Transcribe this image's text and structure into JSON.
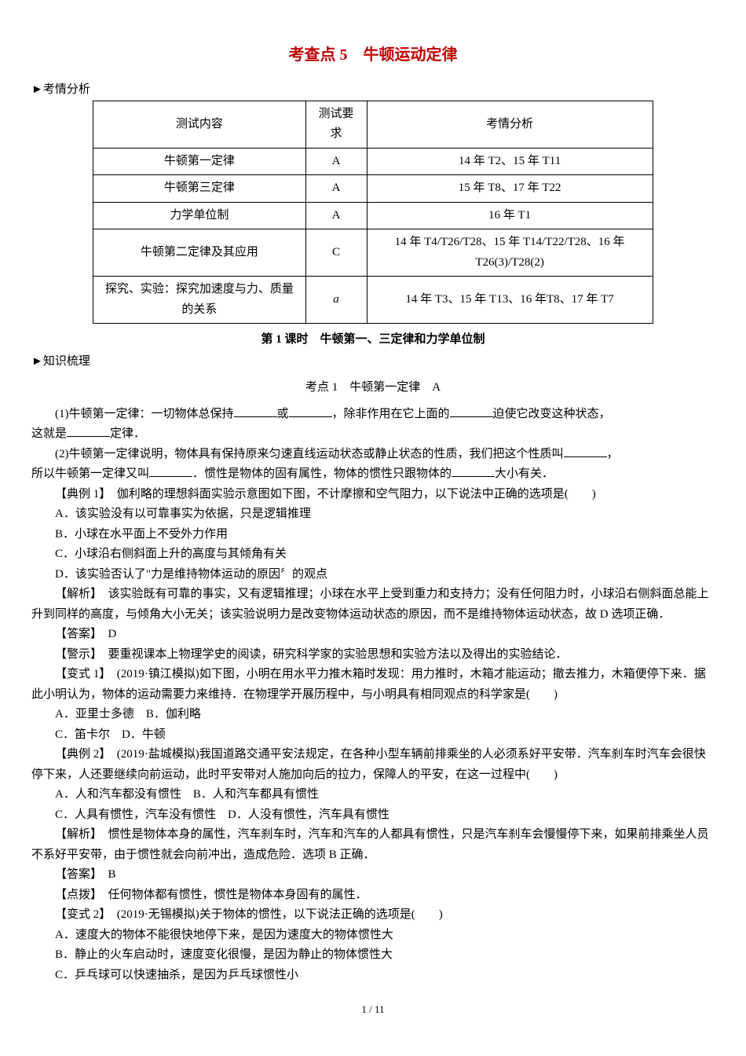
{
  "title": "考查点 5　牛顿运动定律",
  "analysis_marker": "►考情分析",
  "table": {
    "headers": [
      "测试内容",
      "测试要求",
      "考情分析"
    ],
    "rows": [
      [
        "牛顿第一定律",
        "A",
        "14 年 T2、15 年 T11"
      ],
      [
        "牛顿第三定律",
        "A",
        "15 年 T8、17 年 T22"
      ],
      [
        "力学单位制",
        "A",
        "16 年 T1"
      ],
      [
        "牛顿第二定律及其应用",
        "C",
        "14 年 T4/T26/T28、15 年 T14/T22/T28、16 年 T26(3)/T28(2)"
      ],
      [
        "探究、实验：探究加速度与力、质量的关系",
        "a",
        "14 年 T3、15 年 T13、16 年T8、17 年 T7"
      ]
    ]
  },
  "lesson_title": "第 1 课时　牛顿第一、三定律和力学单位制",
  "knowledge_marker": "►知识梳理",
  "exam_point1": "考点 1　牛顿第一定律　A",
  "p1_a": "(1)牛顿第一定律：一切物体总保持",
  "p1_b": "或",
  "p1_c": "，除非作用在它上面的",
  "p1_d": "迫使它改变这种状态，",
  "p1_e": "这就是",
  "p1_f": "定律．",
  "p2_a": "(2)牛顿第一定律说明，物体具有保持原来匀速直线运动状态或静止状态的性质，我们把这个性质叫",
  "p2_b": "，",
  "p2_c": "所以牛顿第一定律又叫",
  "p2_d": "．惯性是物体的固有属性，物体的惯性只跟物体的",
  "p2_e": "大小有关．",
  "ex1": "【典例 1】　伽利略的理想斜面实验示意图如下图，不计摩擦和空气阻力，以下说法中正确的选项是(　　)",
  "ex1_a": "A．该实验没有以可靠事实为依据，只是逻辑推理",
  "ex1_b": "B．小球在水平面上不受外力作用",
  "ex1_c": "C．小球沿右侧斜面上升的高度与其倾角有关",
  "ex1_d": "D．该实验否认了\"力是维持物体运动的原因〞的观点",
  "ex1_analysis": "【解析】　该实验既有可靠的事实，又有逻辑推理；小球在水平上受到重力和支持力；没有任何阻力时，小球沿右侧斜面总能上升到同样的高度，与倾角大小无关；该实验说明力是改变物体运动状态的原因，而不是维持物体运动状态，故 D 选项正确．",
  "ex1_answer": "【答案】　D",
  "ex1_warn": "【警示】　要重视课本上物理学史的阅读，研究科学家的实验思想和实验方法以及得出的实验结论．",
  "var1": "【变式 1】　(2019·镇江模拟)如下图，小明在用水平力推木箱时发现：用力推时，木箱才能运动；撤去推力，木箱便停下来．据此小明认为，物体的运动需要力来维持．在物理学开展历程中，与小明具有相同观点的科学家是(　　)",
  "var1_a": "A．亚里士多德　B．伽利略",
  "var1_b": "C．笛卡尔　D．牛顿",
  "ex2": "【典例 2】　(2019·盐城模拟)我国道路交通平安法规定，在各种小型车辆前排乘坐的人必须系好平安带．汽车刹车时汽车会很快停下来，人还要继续向前运动，此时平安带对人施加向后的拉力，保障人的平安，在这一过程中(　　)",
  "ex2_a": "A．人和汽车都没有惯性　B．人和汽车都具有惯性",
  "ex2_b": "C．人具有惯性，汽车没有惯性　D．人没有惯性，汽车具有惯性",
  "ex2_analysis": "【解析】　惯性是物体本身的属性，汽车刹车时，汽车和汽车的人都具有惯性，只是汽车刹车会慢慢停下来，如果前排乘坐人员不系好平安带，由于惯性就会向前冲出，造成危险．选项 B 正确．",
  "ex2_answer": "【答案】　B",
  "ex2_tip": "【点拨】　任何物体都有惯性，惯性是物体本身固有的属性．",
  "var2": "【变式 2】　(2019·无锡模拟)关于物体的惯性，以下说法正确的选项是(　　)",
  "var2_a": "A．速度大的物体不能很快地停下来，是因为速度大的物体惯性大",
  "var2_b": "B．静止的火车启动时，速度变化很慢，是因为静止的物体惯性大",
  "var2_c": "C．乒乓球可以快速抽杀，是因为乒乓球惯性小",
  "page": "1 / 11"
}
